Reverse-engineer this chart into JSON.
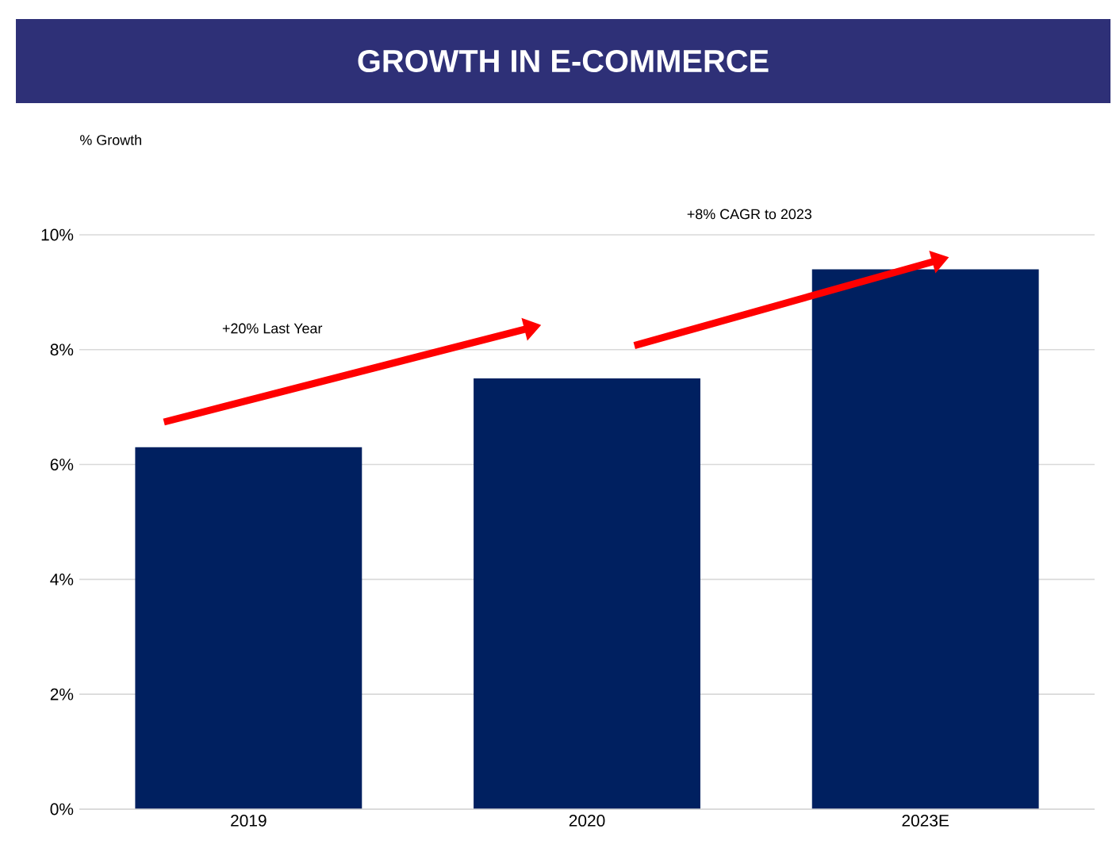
{
  "chart_data": {
    "type": "bar",
    "title": "GROWTH IN E-COMMERCE",
    "categories": [
      "2019",
      "2020",
      "2023E"
    ],
    "values": [
      6.3,
      7.5,
      9.4
    ],
    "color": "#002060",
    "ylim": [
      0,
      10
    ],
    "yticks": [
      {
        "value": 0,
        "label": "0%"
      },
      {
        "value": 2,
        "label": "2%"
      },
      {
        "value": 4,
        "label": "4%"
      },
      {
        "value": 6,
        "label": "6%"
      },
      {
        "value": 8,
        "label": "8%"
      },
      {
        "value": 10,
        "label": "10%"
      }
    ],
    "grid": "y",
    "annotations": [
      "% Growth",
      "+20% Last Year",
      "+8% CAGR to 2023"
    ]
  }
}
